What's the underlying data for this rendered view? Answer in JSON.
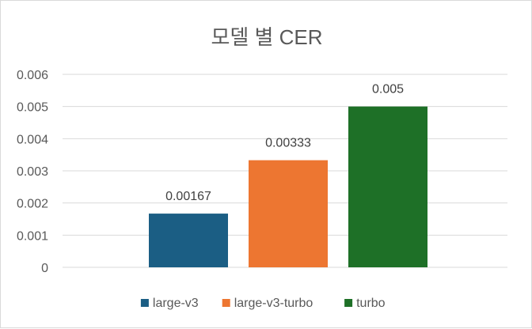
{
  "chart_data": {
    "type": "bar",
    "title": "모델 별 CER",
    "xlabel": "",
    "ylabel": "",
    "categories": [
      ""
    ],
    "series": [
      {
        "name": "large-v3",
        "values": [
          0.00167
        ],
        "color": "#1b5e84",
        "label": "0.00167"
      },
      {
        "name": "large-v3-turbo",
        "values": [
          0.00333
        ],
        "color": "#ed7631",
        "label": "0.00333"
      },
      {
        "name": "turbo",
        "values": [
          0.005
        ],
        "color": "#1e7027",
        "label": "0.005"
      }
    ],
    "ylim": [
      0,
      0.006
    ],
    "yticks": [
      0,
      0.001,
      0.002,
      0.003,
      0.004,
      0.005,
      0.006
    ],
    "ytick_labels": [
      "0",
      "0.001",
      "0.002",
      "0.003",
      "0.004",
      "0.005",
      "0.006"
    ],
    "grid": true,
    "legend_position": "bottom"
  }
}
